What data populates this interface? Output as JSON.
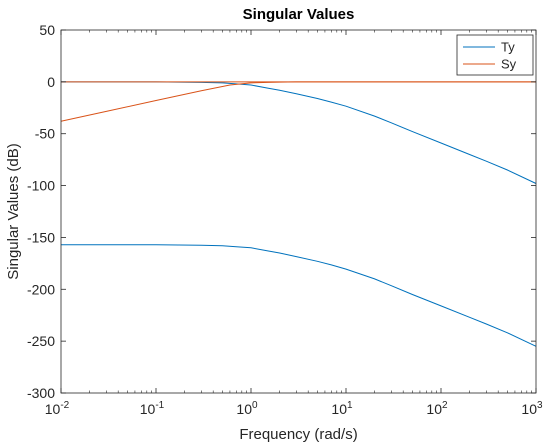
{
  "chart_data": {
    "type": "line",
    "title": "Singular Values",
    "xlabel": "Frequency (rad/s)",
    "ylabel": "Singular Values (dB)",
    "xscale": "log",
    "xlim": [
      0.01,
      1000
    ],
    "ylim": [
      -300,
      50
    ],
    "xticks": [
      0.01,
      0.1,
      1,
      10,
      100,
      1000
    ],
    "xtick_labels": [
      {
        "base": "10",
        "exp": "-2"
      },
      {
        "base": "10",
        "exp": "-1"
      },
      {
        "base": "10",
        "exp": "0"
      },
      {
        "base": "10",
        "exp": "1"
      },
      {
        "base": "10",
        "exp": "2"
      },
      {
        "base": "10",
        "exp": "3"
      }
    ],
    "yticks": [
      50,
      0,
      -50,
      -100,
      -150,
      -200,
      -250,
      -300
    ],
    "ytick_labels": [
      "50",
      "0",
      "-50",
      "-100",
      "-150",
      "-200",
      "-250",
      "-300"
    ],
    "grid": false,
    "legend_position": "top-right",
    "series": [
      {
        "name": "Ty",
        "color": "#0072BD",
        "curves": [
          {
            "x": [
              0.01,
              0.1,
              0.3,
              0.5,
              0.7,
              1,
              1.5,
              2,
              3,
              5,
              7,
              10,
              20,
              30,
              50,
              100,
              200,
              300,
              500,
              1000
            ],
            "y": [
              0,
              0,
              -0.5,
              -1,
              -2,
              -3,
              -6,
              -8,
              -11.5,
              -16,
              -19.5,
              -23.5,
              -33,
              -39.5,
              -48,
              -59,
              -70,
              -76.5,
              -85,
              -98
            ]
          },
          {
            "x": [
              0.01,
              0.1,
              0.3,
              0.5,
              0.7,
              1,
              1.5,
              2,
              3,
              5,
              7,
              10,
              20,
              30,
              50,
              100,
              200,
              300,
              500,
              1000
            ],
            "y": [
              -157,
              -157,
              -157.5,
              -158,
              -159,
              -160,
              -163,
              -165,
              -168.5,
              -173,
              -176.5,
              -180.5,
              -190,
              -196.5,
              -205,
              -216,
              -227,
              -233.5,
              -242,
              -255
            ]
          }
        ]
      },
      {
        "name": "Sy",
        "color": "#D95319",
        "curves": [
          {
            "x": [
              0.01,
              1000
            ],
            "y": [
              0,
              0
            ]
          },
          {
            "x": [
              0.01,
              0.03,
              0.1,
              0.3,
              0.6,
              1,
              1.5,
              2,
              3,
              5,
              10,
              30,
              100,
              1000
            ],
            "y": [
              -38,
              -28.5,
              -18,
              -8.5,
              -3,
              -1,
              -0.5,
              -0.2,
              0,
              0,
              0,
              0,
              0,
              0
            ]
          }
        ]
      }
    ]
  }
}
